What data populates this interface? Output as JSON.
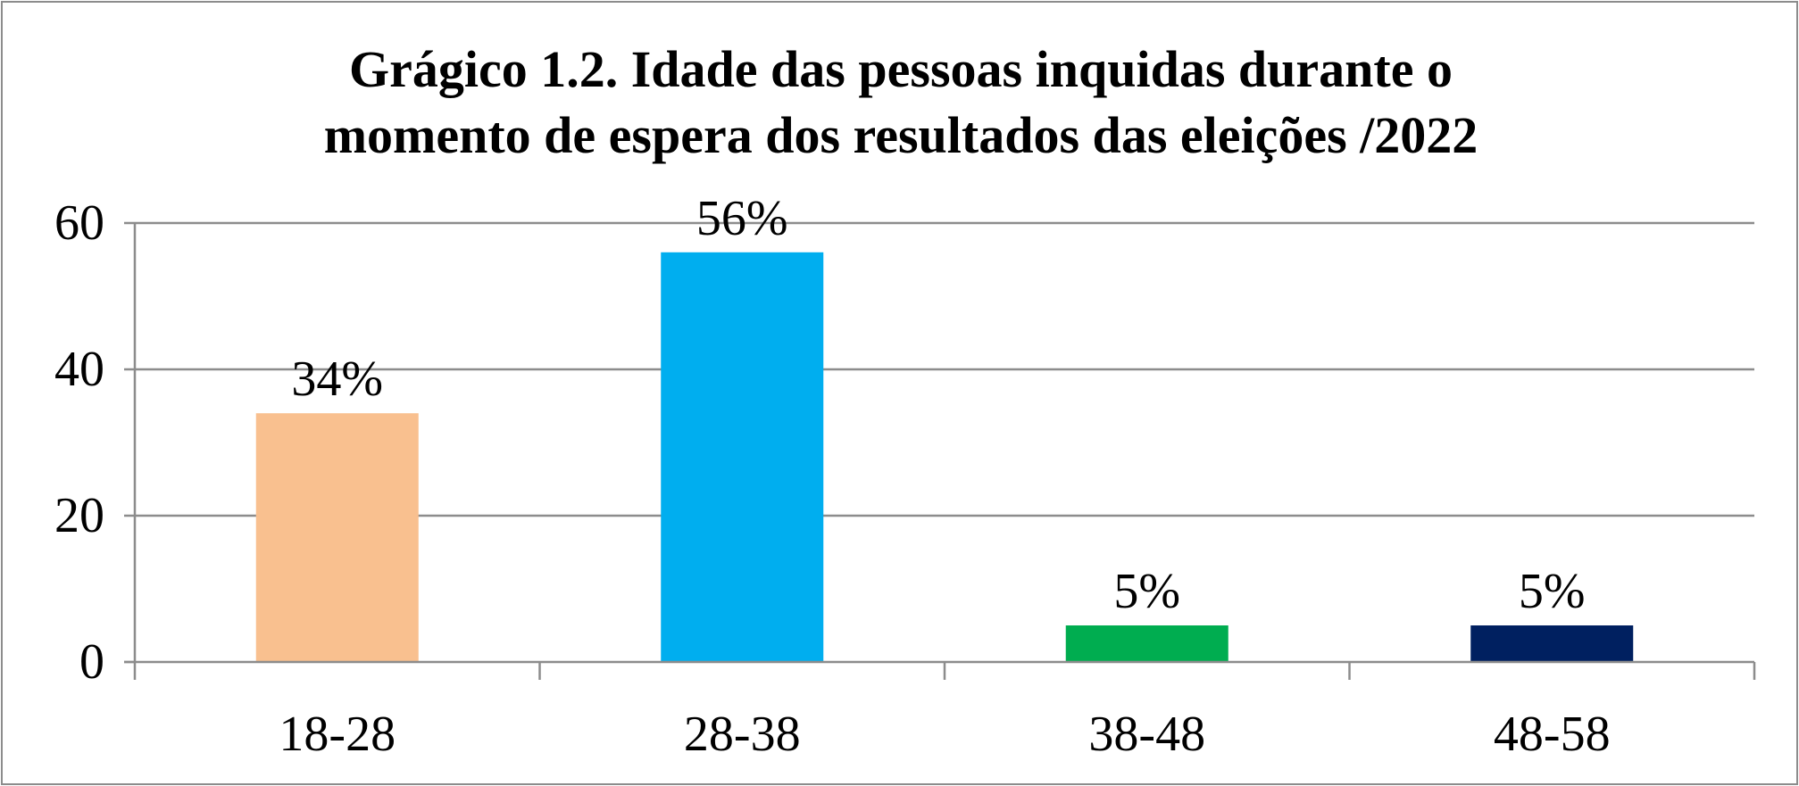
{
  "chart_data": {
    "type": "bar",
    "title_lines": [
      "Grágico 1.2. Idade das pessoas inquidas durante o",
      "momento de espera dos resultados das eleições /2022"
    ],
    "categories": [
      "18-28",
      "28-38",
      "38-48",
      "48-58"
    ],
    "values": [
      34,
      56,
      5,
      5
    ],
    "data_labels": [
      "34%",
      "56%",
      "5%",
      "5%"
    ],
    "colors": [
      "#F9C08F",
      "#00AEEF",
      "#00AD50",
      "#002060"
    ],
    "y_ticks": [
      "0",
      "20",
      "40",
      "60"
    ],
    "ylim": [
      0,
      60
    ],
    "xlabel": "",
    "ylabel": "",
    "grid": true,
    "legend": "none"
  }
}
